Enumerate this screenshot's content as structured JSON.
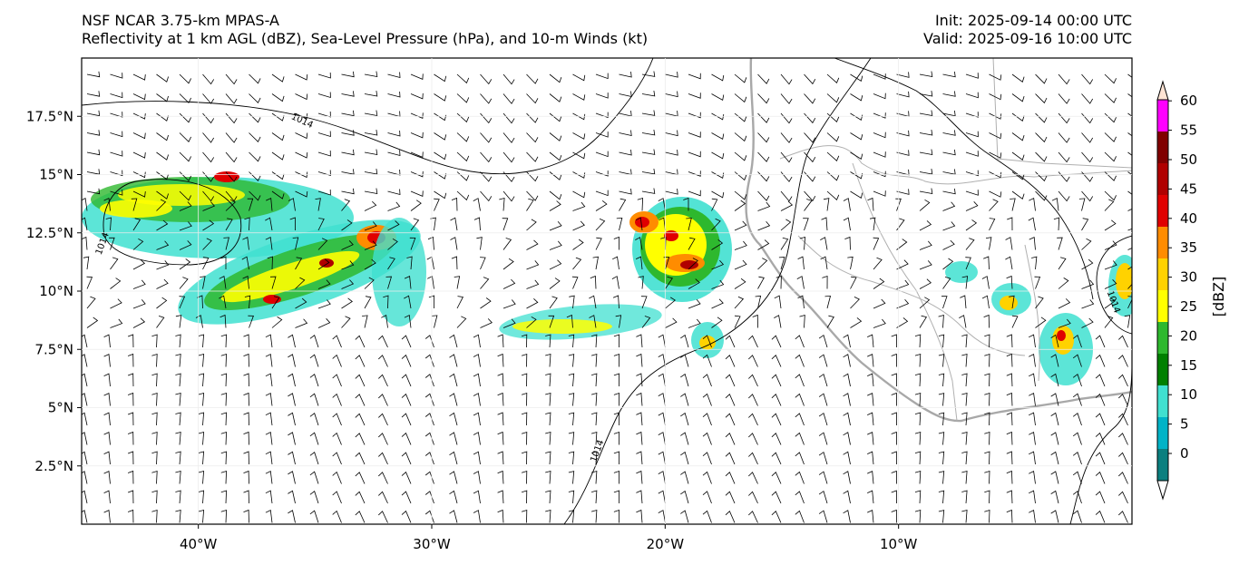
{
  "header": {
    "title_line1": "NSF NCAR 3.75-km MPAS-A",
    "title_line2": "Reflectivity at 1 km AGL (dBZ), Sea-Level Pressure (hPa), and 10-m Winds (kt)",
    "init": "Init: 2025-09-14 00:00 UTC",
    "valid": "Valid: 2025-09-16 10:00 UTC"
  },
  "map": {
    "lon_range": [
      -45,
      0
    ],
    "lat_range": [
      0,
      20
    ],
    "lat_ticks": [
      {
        "value": 17.5,
        "label": "17.5°N"
      },
      {
        "value": 15,
        "label": "15°N"
      },
      {
        "value": 12.5,
        "label": "12.5°N"
      },
      {
        "value": 10,
        "label": "10°N"
      },
      {
        "value": 7.5,
        "label": "7.5°N"
      },
      {
        "value": 5,
        "label": "5°N"
      },
      {
        "value": 2.5,
        "label": "2.5°N"
      }
    ],
    "lon_ticks": [
      {
        "value": -40,
        "label": "40°W"
      },
      {
        "value": -30,
        "label": "30°W"
      },
      {
        "value": -20,
        "label": "20°W"
      },
      {
        "value": -10,
        "label": "10°W"
      }
    ],
    "isobar_labels": [
      {
        "lon": -35.6,
        "lat": 17.2,
        "text": "1014"
      },
      {
        "lon": -44,
        "lat": 12.0,
        "text": "1014"
      },
      {
        "lon": -22.8,
        "lat": 3.1,
        "text": "1014"
      },
      {
        "lon": -0.9,
        "lat": 9.5,
        "text": "1014"
      }
    ],
    "colors": {
      "coast": "#a8a8a8",
      "isobar": "#000000",
      "border": "#b0b0b0"
    }
  },
  "colorbar": {
    "label": "[dBZ]",
    "ticks": [
      "0",
      "5",
      "10",
      "15",
      "20",
      "25",
      "30",
      "35",
      "40",
      "45",
      "50",
      "55",
      "60"
    ],
    "colors": [
      "#0b7f7f",
      "#00b3c7",
      "#40e0d0",
      "#008000",
      "#2eb82e",
      "#ffff00",
      "#ffd200",
      "#ff8c00",
      "#e00000",
      "#b00000",
      "#800000",
      "#ff00ff",
      "#ffe4d4"
    ]
  }
}
